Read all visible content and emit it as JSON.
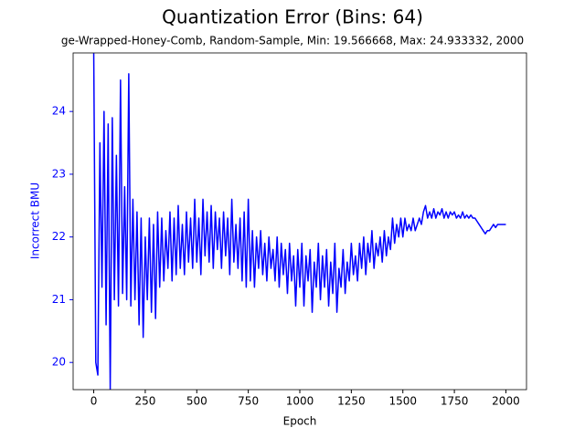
{
  "chart_data": {
    "type": "line",
    "title": "Quantization Error (Bins: 64)",
    "subtitle": "ge-Wrapped-Honey-Comb, Random-Sample, Min: 19.566668, Max: 24.933332, 2000",
    "x_label": "Epoch",
    "y_label": "Incorrect BMU",
    "x": [
      0,
      10,
      20,
      30,
      40,
      50,
      60,
      70,
      80,
      90,
      100,
      110,
      120,
      130,
      140,
      150,
      160,
      170,
      180,
      190,
      200,
      210,
      220,
      230,
      240,
      250,
      260,
      270,
      280,
      290,
      300,
      310,
      320,
      330,
      340,
      350,
      360,
      370,
      380,
      390,
      400,
      410,
      420,
      430,
      440,
      450,
      460,
      470,
      480,
      490,
      500,
      510,
      520,
      530,
      540,
      550,
      560,
      570,
      580,
      590,
      600,
      610,
      620,
      630,
      640,
      650,
      660,
      670,
      680,
      690,
      700,
      710,
      720,
      730,
      740,
      750,
      760,
      770,
      780,
      790,
      800,
      810,
      820,
      830,
      840,
      850,
      860,
      870,
      880,
      890,
      900,
      910,
      920,
      930,
      940,
      950,
      960,
      970,
      980,
      990,
      1000,
      1010,
      1020,
      1030,
      1040,
      1050,
      1060,
      1070,
      1080,
      1090,
      1100,
      1110,
      1120,
      1130,
      1140,
      1150,
      1160,
      1170,
      1180,
      1190,
      1200,
      1210,
      1220,
      1230,
      1240,
      1250,
      1260,
      1270,
      1280,
      1290,
      1300,
      1310,
      1320,
      1330,
      1340,
      1350,
      1360,
      1370,
      1380,
      1390,
      1400,
      1410,
      1420,
      1430,
      1440,
      1450,
      1460,
      1470,
      1480,
      1490,
      1500,
      1510,
      1520,
      1530,
      1540,
      1550,
      1560,
      1570,
      1580,
      1590,
      1600,
      1610,
      1620,
      1630,
      1640,
      1650,
      1660,
      1670,
      1680,
      1690,
      1700,
      1710,
      1720,
      1730,
      1740,
      1750,
      1760,
      1770,
      1780,
      1790,
      1800,
      1810,
      1820,
      1830,
      1840,
      1850,
      1860,
      1870,
      1880,
      1890,
      1900,
      1910,
      1920,
      1930,
      1940,
      1950,
      1960,
      1970,
      1980,
      1990,
      2000
    ],
    "series": [
      {
        "name": "Incorrect BMU",
        "color": "#0000ff",
        "values": [
          24.93,
          20.0,
          19.8,
          23.5,
          21.2,
          24.0,
          20.6,
          23.8,
          19.57,
          23.9,
          21.0,
          23.3,
          20.9,
          24.5,
          21.1,
          22.8,
          21.0,
          24.6,
          20.9,
          22.6,
          21.0,
          22.4,
          20.6,
          22.3,
          20.4,
          22.0,
          21.0,
          22.3,
          20.8,
          22.2,
          20.7,
          22.4,
          21.2,
          22.3,
          21.3,
          22.1,
          21.5,
          22.4,
          21.3,
          22.3,
          21.4,
          22.5,
          21.5,
          22.2,
          21.4,
          22.4,
          21.6,
          22.3,
          21.5,
          22.6,
          21.6,
          22.3,
          21.4,
          22.6,
          21.7,
          22.4,
          21.6,
          22.5,
          21.5,
          22.4,
          21.8,
          22.3,
          21.5,
          22.4,
          21.7,
          22.3,
          21.4,
          22.6,
          21.6,
          22.2,
          21.5,
          22.3,
          21.3,
          22.4,
          21.2,
          22.6,
          21.3,
          22.1,
          21.2,
          22.0,
          21.5,
          22.1,
          21.4,
          21.9,
          21.3,
          22.0,
          21.5,
          21.8,
          21.3,
          22.0,
          21.2,
          21.9,
          21.4,
          21.8,
          21.1,
          21.9,
          21.3,
          21.7,
          20.9,
          21.8,
          21.2,
          21.9,
          20.9,
          21.7,
          21.3,
          21.8,
          20.8,
          21.6,
          21.2,
          21.9,
          21.0,
          21.7,
          21.2,
          21.8,
          20.9,
          21.6,
          21.1,
          21.9,
          20.8,
          21.5,
          21.2,
          21.8,
          21.1,
          21.6,
          21.3,
          21.9,
          21.4,
          21.7,
          21.3,
          21.9,
          21.5,
          22.0,
          21.4,
          21.9,
          21.6,
          22.1,
          21.5,
          21.9,
          21.7,
          22.0,
          21.6,
          22.1,
          21.7,
          22.0,
          21.8,
          22.3,
          21.9,
          22.2,
          22.0,
          22.3,
          22.0,
          22.3,
          22.1,
          22.2,
          22.1,
          22.3,
          22.1,
          22.2,
          22.3,
          22.2,
          22.4,
          22.5,
          22.3,
          22.4,
          22.3,
          22.45,
          22.3,
          22.4,
          22.35,
          22.45,
          22.3,
          22.4,
          22.3,
          22.4,
          22.35,
          22.4,
          22.3,
          22.35,
          22.3,
          22.4,
          22.3,
          22.35,
          22.3,
          22.35,
          22.3,
          22.3,
          22.25,
          22.2,
          22.15,
          22.1,
          22.05,
          22.1,
          22.1,
          22.15,
          22.2,
          22.15,
          22.2,
          22.2,
          22.2,
          22.2,
          22.2
        ]
      }
    ],
    "xlim": [
      -100,
      2100
    ],
    "xticks": [
      0,
      250,
      500,
      750,
      1000,
      1250,
      1500,
      1750,
      2000
    ],
    "ylim": [
      19.566668,
      24.933332
    ],
    "yticks": [
      20,
      21,
      22,
      23,
      24
    ]
  }
}
